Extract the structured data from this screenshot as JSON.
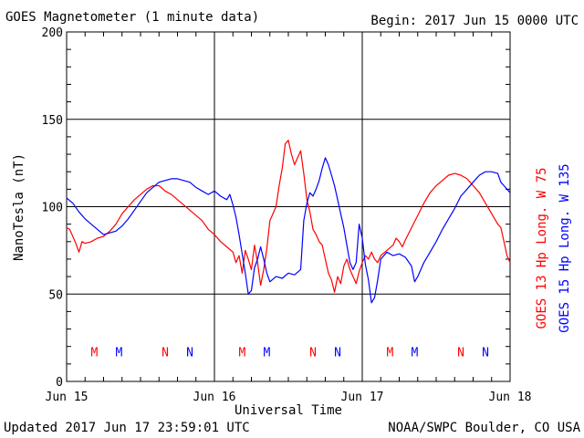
{
  "colors": {
    "goes13": "#ff0000",
    "goes15": "#0000ff",
    "axis": "#000000",
    "background": "#ffffff"
  },
  "header": {
    "title": "GOES Magnetometer (1 minute data)",
    "begin": "Begin:  2017 Jun 15 0000 UTC"
  },
  "footer": {
    "updated": "Updated 2017 Jun 17 23:59:01 UTC",
    "credit": "NOAA/SWPC Boulder, CO USA"
  },
  "chart_data": {
    "type": "line",
    "xlabel": "Universal Time",
    "ylabel": "NanoTesla (nT)",
    "ylim": [
      0,
      200
    ],
    "xlim": [
      0,
      72
    ],
    "x_unit": "hours since 2017 Jun 15 0000 UTC",
    "y_ticks": [
      0,
      50,
      100,
      150,
      200
    ],
    "x_tick_labels": [
      "Jun 15",
      "Jun 16",
      "Jun 17",
      "Jun 18"
    ],
    "grid": true,
    "series": [
      {
        "name": "GOES 13 Hp  Long. W 75",
        "color": "#ff0000",
        "points": [
          [
            0,
            88
          ],
          [
            0.5,
            87
          ],
          [
            1,
            83
          ],
          [
            1.5,
            79
          ],
          [
            2,
            74
          ],
          [
            2.5,
            80
          ],
          [
            3,
            79
          ],
          [
            4,
            80
          ],
          [
            5,
            82
          ],
          [
            6,
            83
          ],
          [
            7,
            86
          ],
          [
            8,
            90
          ],
          [
            9,
            96
          ],
          [
            10,
            100
          ],
          [
            11,
            104
          ],
          [
            12,
            107
          ],
          [
            13,
            110
          ],
          [
            14,
            112
          ],
          [
            15,
            112
          ],
          [
            16,
            109
          ],
          [
            17,
            107
          ],
          [
            18,
            104
          ],
          [
            19,
            101
          ],
          [
            20,
            98
          ],
          [
            21,
            95
          ],
          [
            22,
            92
          ],
          [
            23,
            87
          ],
          [
            24,
            84
          ],
          [
            25,
            80
          ],
          [
            26,
            77
          ],
          [
            27,
            74
          ],
          [
            27.5,
            68
          ],
          [
            28,
            72
          ],
          [
            28.5,
            62
          ],
          [
            29,
            75
          ],
          [
            29.5,
            70
          ],
          [
            30,
            64
          ],
          [
            30.5,
            78
          ],
          [
            31,
            68
          ],
          [
            31.5,
            55
          ],
          [
            32,
            64
          ],
          [
            32.5,
            76
          ],
          [
            33,
            92
          ],
          [
            33.5,
            96
          ],
          [
            34,
            100
          ],
          [
            34.5,
            112
          ],
          [
            35,
            122
          ],
          [
            35.5,
            136
          ],
          [
            36,
            138
          ],
          [
            36.5,
            130
          ],
          [
            37,
            124
          ],
          [
            37.5,
            128
          ],
          [
            38,
            132
          ],
          [
            38.5,
            119
          ],
          [
            39,
            104
          ],
          [
            39.5,
            97
          ],
          [
            40,
            87
          ],
          [
            40.5,
            84
          ],
          [
            41,
            80
          ],
          [
            41.5,
            78
          ],
          [
            42,
            70
          ],
          [
            42.5,
            62
          ],
          [
            43,
            58
          ],
          [
            43.5,
            51
          ],
          [
            44,
            60
          ],
          [
            44.5,
            56
          ],
          [
            45,
            66
          ],
          [
            45.5,
            70
          ],
          [
            46,
            64
          ],
          [
            46.5,
            60
          ],
          [
            47,
            56
          ],
          [
            47.5,
            63
          ],
          [
            48,
            68
          ],
          [
            48.5,
            72
          ],
          [
            49,
            70
          ],
          [
            49.5,
            74
          ],
          [
            50,
            70
          ],
          [
            50.5,
            68
          ],
          [
            51,
            72
          ],
          [
            52,
            75
          ],
          [
            53,
            78
          ],
          [
            53.5,
            82
          ],
          [
            54,
            80
          ],
          [
            54.5,
            77
          ],
          [
            55,
            81
          ],
          [
            56,
            88
          ],
          [
            57,
            95
          ],
          [
            58,
            102
          ],
          [
            59,
            108
          ],
          [
            60,
            112
          ],
          [
            61,
            115
          ],
          [
            62,
            118
          ],
          [
            63,
            119
          ],
          [
            64,
            118
          ],
          [
            65,
            116
          ],
          [
            66,
            112
          ],
          [
            67,
            108
          ],
          [
            68,
            102
          ],
          [
            69,
            96
          ],
          [
            70,
            90
          ],
          [
            70.5,
            88
          ],
          [
            71,
            80
          ],
          [
            71.5,
            72
          ],
          [
            72,
            68
          ]
        ]
      },
      {
        "name": "GOES 15 Hp  Long. W 135",
        "color": "#0000ff",
        "points": [
          [
            0,
            105
          ],
          [
            1,
            102
          ],
          [
            2,
            97
          ],
          [
            3,
            93
          ],
          [
            4,
            90
          ],
          [
            5,
            87
          ],
          [
            6,
            84
          ],
          [
            7,
            85
          ],
          [
            8,
            86
          ],
          [
            9,
            89
          ],
          [
            10,
            93
          ],
          [
            11,
            98
          ],
          [
            12,
            103
          ],
          [
            13,
            108
          ],
          [
            14,
            111
          ],
          [
            15,
            114
          ],
          [
            16,
            115
          ],
          [
            17,
            116
          ],
          [
            18,
            116
          ],
          [
            19,
            115
          ],
          [
            20,
            114
          ],
          [
            21,
            111
          ],
          [
            22,
            109
          ],
          [
            23,
            107
          ],
          [
            24,
            109
          ],
          [
            25,
            106
          ],
          [
            26,
            104
          ],
          [
            26.5,
            107
          ],
          [
            27,
            101
          ],
          [
            27.5,
            94
          ],
          [
            28,
            84
          ],
          [
            28.5,
            73
          ],
          [
            29,
            62
          ],
          [
            29.5,
            50
          ],
          [
            30,
            52
          ],
          [
            30.5,
            65
          ],
          [
            31,
            70
          ],
          [
            31.5,
            77
          ],
          [
            32,
            70
          ],
          [
            32.5,
            62
          ],
          [
            33,
            57
          ],
          [
            34,
            60
          ],
          [
            35,
            59
          ],
          [
            36,
            62
          ],
          [
            37,
            61
          ],
          [
            38,
            64
          ],
          [
            38.5,
            92
          ],
          [
            39,
            102
          ],
          [
            39.5,
            108
          ],
          [
            40,
            106
          ],
          [
            40.5,
            110
          ],
          [
            41,
            115
          ],
          [
            41.5,
            122
          ],
          [
            42,
            128
          ],
          [
            42.5,
            124
          ],
          [
            43,
            118
          ],
          [
            43.5,
            112
          ],
          [
            44,
            104
          ],
          [
            44.5,
            96
          ],
          [
            45,
            88
          ],
          [
            45.5,
            78
          ],
          [
            46,
            68
          ],
          [
            46.5,
            64
          ],
          [
            47,
            68
          ],
          [
            47.5,
            90
          ],
          [
            48,
            82
          ],
          [
            48.5,
            67
          ],
          [
            49,
            58
          ],
          [
            49.5,
            45
          ],
          [
            50,
            48
          ],
          [
            50.5,
            58
          ],
          [
            51,
            70
          ],
          [
            52,
            74
          ],
          [
            53,
            72
          ],
          [
            54,
            73
          ],
          [
            55,
            71
          ],
          [
            56,
            66
          ],
          [
            56.5,
            57
          ],
          [
            57,
            60
          ],
          [
            58,
            68
          ],
          [
            59,
            74
          ],
          [
            60,
            80
          ],
          [
            61,
            87
          ],
          [
            62,
            93
          ],
          [
            63,
            99
          ],
          [
            64,
            106
          ],
          [
            65,
            110
          ],
          [
            66,
            114
          ],
          [
            67,
            118
          ],
          [
            68,
            120
          ],
          [
            69,
            120
          ],
          [
            70,
            119
          ],
          [
            70.5,
            114
          ],
          [
            71,
            112
          ],
          [
            71.5,
            110
          ],
          [
            72,
            108
          ]
        ]
      }
    ],
    "markers": [
      {
        "label": "M",
        "x": 4.5,
        "color": "#ff0000"
      },
      {
        "label": "M",
        "x": 8.5,
        "color": "#0000ff"
      },
      {
        "label": "N",
        "x": 16.0,
        "color": "#ff0000"
      },
      {
        "label": "N",
        "x": 20.0,
        "color": "#0000ff"
      },
      {
        "label": "M",
        "x": 28.5,
        "color": "#ff0000"
      },
      {
        "label": "M",
        "x": 32.5,
        "color": "#0000ff"
      },
      {
        "label": "N",
        "x": 40.0,
        "color": "#ff0000"
      },
      {
        "label": "N",
        "x": 44.0,
        "color": "#0000ff"
      },
      {
        "label": "M",
        "x": 52.5,
        "color": "#ff0000"
      },
      {
        "label": "M",
        "x": 56.5,
        "color": "#0000ff"
      },
      {
        "label": "N",
        "x": 64.0,
        "color": "#ff0000"
      },
      {
        "label": "N",
        "x": 68.0,
        "color": "#0000ff"
      }
    ],
    "marker_y": 17
  }
}
